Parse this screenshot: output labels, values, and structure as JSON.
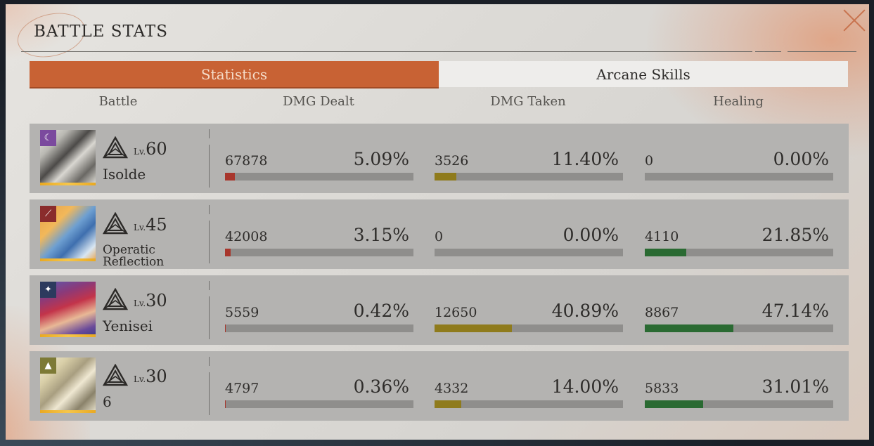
{
  "window": {
    "title": "BATTLE STATS"
  },
  "tabs": [
    {
      "label": "Statistics",
      "active": true
    },
    {
      "label": "Arcane Skills",
      "active": false
    }
  ],
  "columns": [
    "Battle",
    "DMG Dealt",
    "DMG Taken",
    "Healing"
  ],
  "level_prefix": "Lv.",
  "colors": {
    "accent": "#c86234",
    "dealt": "#a8362c",
    "taken": "#8f7b1c",
    "healing": "#2a6a32"
  },
  "characters": [
    {
      "name": "Isolde",
      "level": "60",
      "class_icon": "moon-swirl-icon",
      "badge_color": "#7b4a9e",
      "dealt": {
        "value": "67878",
        "pct": "5.09%",
        "fraction": 0.0509
      },
      "taken": {
        "value": "3526",
        "pct": "11.40%",
        "fraction": 0.114
      },
      "healing": {
        "value": "0",
        "pct": "0.00%",
        "fraction": 0.0
      }
    },
    {
      "name": "Operatic Reflection",
      "name_line1": "Operatic",
      "name_line2": "Reflection",
      "level": "45",
      "class_icon": "claw-icon",
      "badge_color": "#8a2c2c",
      "dealt": {
        "value": "42008",
        "pct": "3.15%",
        "fraction": 0.0315
      },
      "taken": {
        "value": "0",
        "pct": "0.00%",
        "fraction": 0.0
      },
      "healing": {
        "value": "4110",
        "pct": "21.85%",
        "fraction": 0.2185
      }
    },
    {
      "name": "Yenisei",
      "level": "30",
      "class_icon": "star-spark-icon",
      "badge_color": "#2c3a5e",
      "dealt": {
        "value": "5559",
        "pct": "0.42%",
        "fraction": 0.0042
      },
      "taken": {
        "value": "12650",
        "pct": "40.89%",
        "fraction": 0.4089
      },
      "healing": {
        "value": "8867",
        "pct": "47.14%",
        "fraction": 0.4714
      }
    },
    {
      "name": "6",
      "level": "30",
      "class_icon": "pyramid-icon",
      "badge_color": "#7d7a36",
      "dealt": {
        "value": "4797",
        "pct": "0.36%",
        "fraction": 0.0036
      },
      "taken": {
        "value": "4332",
        "pct": "14.00%",
        "fraction": 0.14
      },
      "healing": {
        "value": "5833",
        "pct": "31.01%",
        "fraction": 0.3101
      }
    }
  ]
}
